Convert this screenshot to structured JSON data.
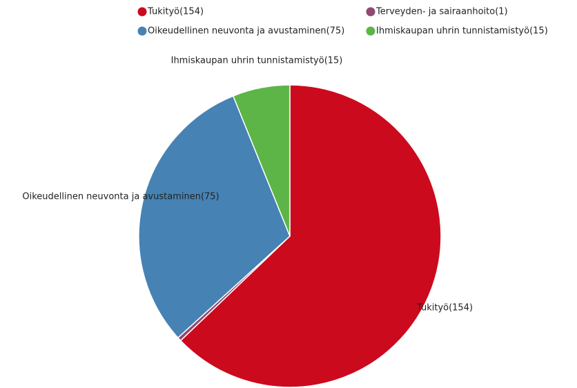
{
  "chart_data": {
    "type": "pie",
    "categories": [
      "Tukityö(154)",
      "Terveyden- ja sairaanhoito(1)",
      "Oikeudellinen neuvonta ja avustaminen(75)",
      "Ihmiskaupan uhrin tunnistamistyö(15)"
    ],
    "values": [
      154,
      1,
      75,
      15
    ],
    "colors": [
      "#cc0a1e",
      "#8e4a72",
      "#4682b4",
      "#5db548"
    ],
    "data_labels": [
      "Tukityö(154)",
      null,
      "Oikeudellinen neuvonta ja avustaminen(75)",
      "Ihmiskaupan uhrin tunnistamistyö(15)"
    ],
    "legend": "top"
  }
}
